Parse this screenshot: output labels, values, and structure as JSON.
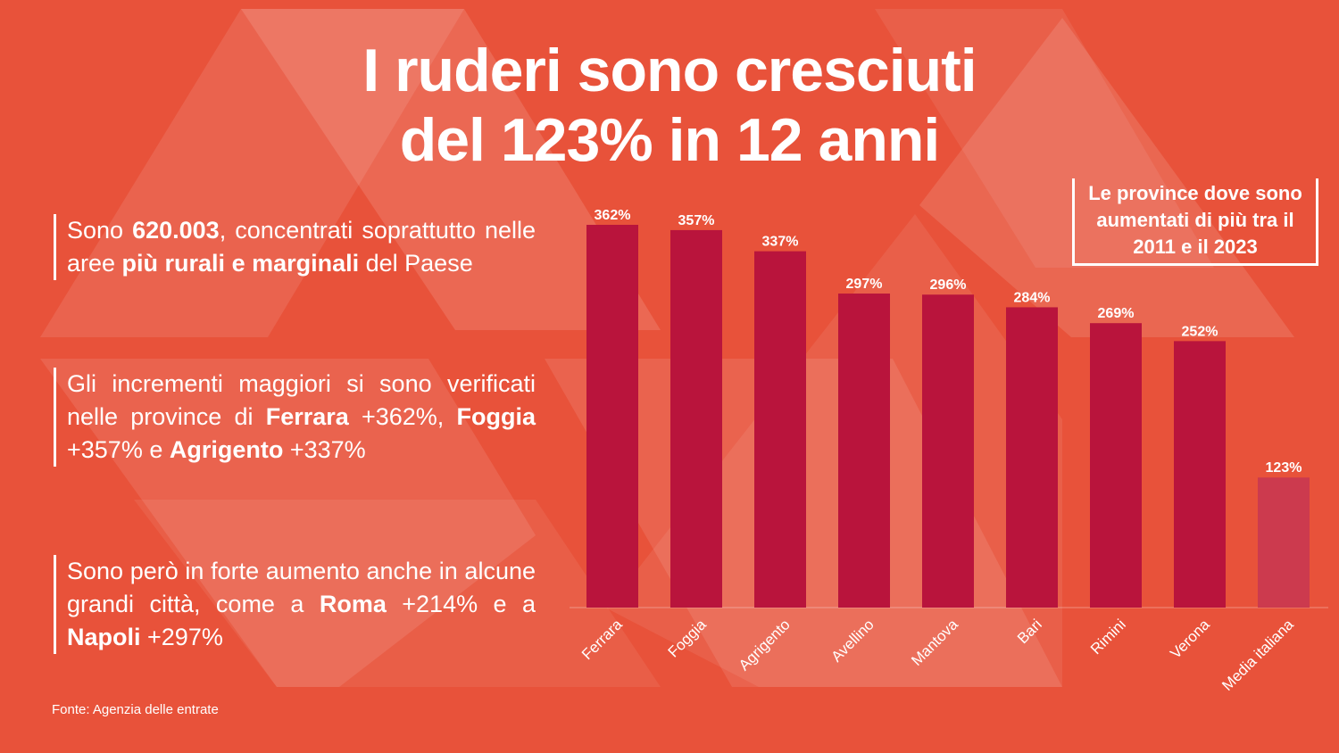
{
  "title": {
    "line1": "I ruderi sono cresciuti",
    "line2": "del 123% in 12 anni"
  },
  "paragraphs": {
    "p1": {
      "pre": "Sono ",
      "bold1": "620.003",
      "mid": ", concentrati soprattutto nelle aree ",
      "bold2": "più rurali e marginali",
      "post": " del Paese"
    },
    "p2": {
      "pre": "Gli incrementi maggiori si sono verificati nelle province di ",
      "bold1": "Ferrara",
      "mid1": " +362%, ",
      "bold2": "Foggia",
      "mid2": " +357% e ",
      "bold3": "Agrigento",
      "post": " +337%"
    },
    "p3": {
      "pre": "Sono però in forte aumento anche in alcune grandi città, come a ",
      "bold1": "Roma",
      "mid": " +214% e a ",
      "bold2": "Napoli",
      "post": " +297%"
    }
  },
  "source": "Fonte: Agenzia delle entrate",
  "chart_legend_box": "Le province dove sono aumentati di più tra il 2011 e il 2023",
  "colors": {
    "background": "#E8523A",
    "bar_province": "#B9143C",
    "bar_average": "#CC3A4E"
  },
  "chart_data": {
    "type": "bar",
    "title": "Le province dove sono aumentati di più tra il 2011 e il 2023",
    "categories": [
      "Ferrara",
      "Foggia",
      "Agrigento",
      "Avellino",
      "Mantova",
      "Bari",
      "Rimini",
      "Verona",
      "Media italiana"
    ],
    "values": [
      362,
      357,
      337,
      297,
      296,
      284,
      269,
      252,
      123
    ],
    "value_labels": [
      "362%",
      "357%",
      "337%",
      "297%",
      "296%",
      "284%",
      "269%",
      "252%",
      "123%"
    ],
    "unit": "%",
    "ylim": [
      0,
      362
    ],
    "grid": false,
    "legend": "top-right"
  }
}
